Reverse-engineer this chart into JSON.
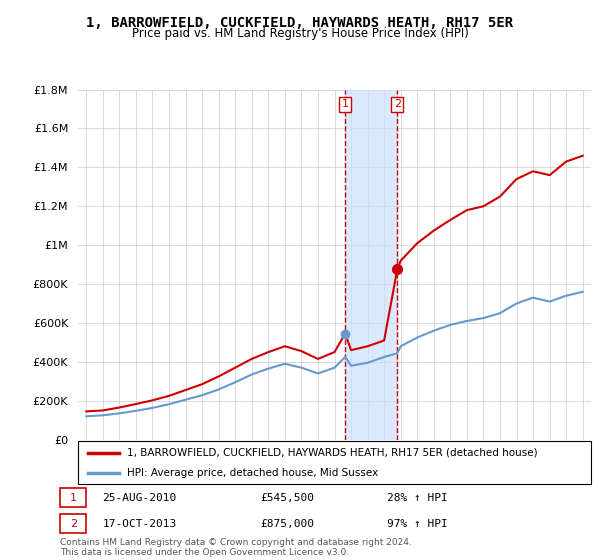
{
  "title": "1, BARROWFIELD, CUCKFIELD, HAYWARDS HEATH, RH17 5ER",
  "subtitle": "Price paid vs. HM Land Registry's House Price Index (HPI)",
  "legend_line1": "1, BARROWFIELD, CUCKFIELD, HAYWARDS HEATH, RH17 5ER (detached house)",
  "legend_line2": "HPI: Average price, detached house, Mid Sussex",
  "sale1_date": "25-AUG-2010",
  "sale1_price": "£545,500",
  "sale1_hpi": "28% ↑ HPI",
  "sale1_year": 2010.646,
  "sale1_price_val": 545500,
  "sale2_date": "17-OCT-2013",
  "sale2_price": "£875,000",
  "sale2_hpi": "97% ↑ HPI",
  "sale2_year": 2013.792,
  "sale2_price_val": 875000,
  "ylim": [
    0,
    1800000
  ],
  "xlim_left": 1994.5,
  "xlim_right": 2025.5,
  "red_color": "#cc0000",
  "blue_color": "#6699cc",
  "shade_color": "#cce0ff",
  "background_color": "#ffffff",
  "grid_color": "#cccccc",
  "copyright_text": "Contains HM Land Registry data © Crown copyright and database right 2024.\nThis data is licensed under the Open Government Licence v3.0.",
  "hpi_years": [
    1995,
    1996,
    1997,
    1998,
    1999,
    2000,
    2001,
    2002,
    2003,
    2004,
    2005,
    2006,
    2007,
    2008,
    2009,
    2010,
    2010.646,
    2011,
    2012,
    2013,
    2013.792,
    2014,
    2015,
    2016,
    2017,
    2018,
    2019,
    2020,
    2021,
    2022,
    2023,
    2024,
    2025
  ],
  "hpi_values": [
    120000,
    125000,
    135000,
    148000,
    163000,
    182000,
    205000,
    228000,
    258000,
    295000,
    335000,
    365000,
    390000,
    370000,
    340000,
    370000,
    425000,
    380000,
    395000,
    425000,
    444000,
    480000,
    525000,
    560000,
    590000,
    610000,
    625000,
    650000,
    700000,
    730000,
    710000,
    740000,
    760000
  ],
  "red_years": [
    1995,
    1996,
    1997,
    1998,
    1999,
    2000,
    2001,
    2002,
    2003,
    2004,
    2005,
    2006,
    2007,
    2008,
    2009,
    2010,
    2010.646,
    2011,
    2012,
    2013,
    2013.792,
    2014,
    2015,
    2016,
    2017,
    2018,
    2019,
    2020,
    2021,
    2022,
    2023,
    2024,
    2025
  ],
  "red_values": [
    145000,
    150000,
    165000,
    183000,
    202000,
    225000,
    255000,
    285000,
    325000,
    370000,
    415000,
    450000,
    480000,
    455000,
    415000,
    450000,
    545500,
    460000,
    480000,
    510000,
    875000,
    920000,
    1010000,
    1075000,
    1130000,
    1180000,
    1200000,
    1250000,
    1340000,
    1380000,
    1360000,
    1430000,
    1460000
  ]
}
